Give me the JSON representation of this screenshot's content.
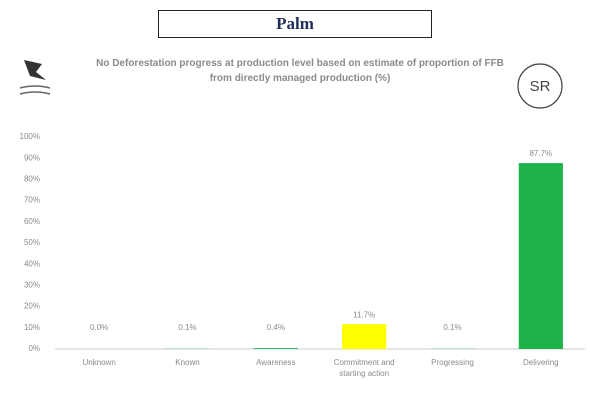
{
  "header": {
    "title": "Palm"
  },
  "badge": "SR",
  "chart_data": {
    "type": "bar",
    "title": "No Deforestation progress at production level based on estimate of proportion of FFB from directly managed production (%)",
    "categories": [
      "Unknown",
      "Known",
      "Awareness",
      "Commitment and starting action",
      "Progressing",
      "Delivering"
    ],
    "values": [
      0.0,
      0.1,
      0.4,
      11.7,
      0.1,
      87.7
    ],
    "value_labels": [
      "0.0%",
      "0.1%",
      "0.4%",
      "11.7%",
      "0.1%",
      "87.7%"
    ],
    "colors": [
      "#1db34a",
      "#1db34a",
      "#1db34a",
      "#ffff00",
      "#1db34a",
      "#1db34a"
    ],
    "ylim": [
      0,
      100
    ],
    "yticks": [
      {
        "value": 0,
        "label": "0%"
      },
      {
        "value": 10,
        "label": "10%"
      },
      {
        "value": 20,
        "label": "20%"
      },
      {
        "value": 30,
        "label": "30%"
      },
      {
        "value": 40,
        "label": "40%"
      },
      {
        "value": 50,
        "label": "50%"
      },
      {
        "value": 60,
        "label": "60%"
      },
      {
        "value": 70,
        "label": "70%"
      },
      {
        "value": 80,
        "label": "80%"
      },
      {
        "value": 90,
        "label": "90%"
      },
      {
        "value": 100,
        "label": "100%"
      }
    ],
    "grid": false
  }
}
